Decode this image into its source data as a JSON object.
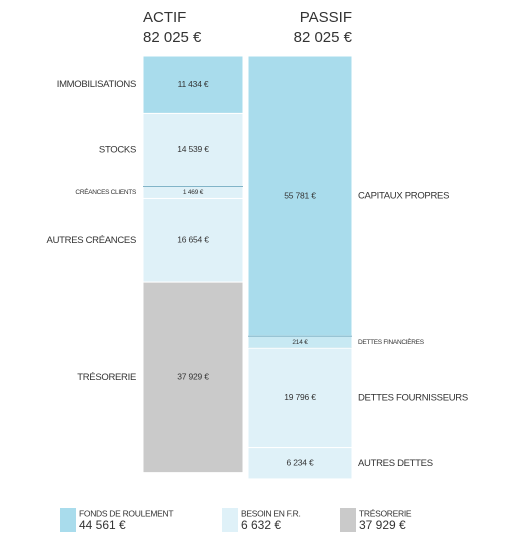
{
  "chart_data": {
    "type": "balance",
    "columns": [
      {
        "name": "ACTIF",
        "total": 82025,
        "total_label": "82 025 €",
        "segments": [
          {
            "name": "IMMOBILISATIONS",
            "value": 11434,
            "value_label": "11 434 €",
            "color": "#a9dcec"
          },
          {
            "name": "STOCKS",
            "value": 14539,
            "value_label": "14 539 €",
            "color": "#dff1f8"
          },
          {
            "name": "CRÉANCES CLIENTS",
            "value": 1469,
            "value_label": "1 469 €",
            "color": "#dff1f8"
          },
          {
            "name": "AUTRES CRÉANCES",
            "value": 16654,
            "value_label": "16 654 €",
            "color": "#dff1f8"
          },
          {
            "name": "TRÉSORERIE",
            "value": 37929,
            "value_label": "37 929 €",
            "color": "#cacaca"
          }
        ]
      },
      {
        "name": "PASSIF",
        "total": 82025,
        "total_label": "82 025 €",
        "segments": [
          {
            "name": "CAPITAUX PROPRES",
            "value": 55781,
            "value_label": "55 781 €",
            "color": "#a9dcec"
          },
          {
            "name": "DETTES FINANCIÈRES",
            "value": 214,
            "value_label": "214 €",
            "color": "#c8e9f3"
          },
          {
            "name": "DETTES FOURNISSEURS",
            "value": 19796,
            "value_label": "19 796 €",
            "color": "#dff1f8"
          },
          {
            "name": "AUTRES DETTES",
            "value": 6234,
            "value_label": "6 234 €",
            "color": "#dff1f8"
          }
        ]
      }
    ],
    "legend": [
      {
        "name": "FONDS DE ROULEMENT",
        "value": 44561,
        "value_label": "44 561 €",
        "color": "#a9dcec"
      },
      {
        "name": "BESOIN EN F.R.",
        "value": 6632,
        "value_label": "6 632 €",
        "color": "#dff1f8"
      },
      {
        "name": "TRÉSORERIE",
        "value": 37929,
        "value_label": "37 929 €",
        "color": "#cacaca"
      }
    ]
  }
}
